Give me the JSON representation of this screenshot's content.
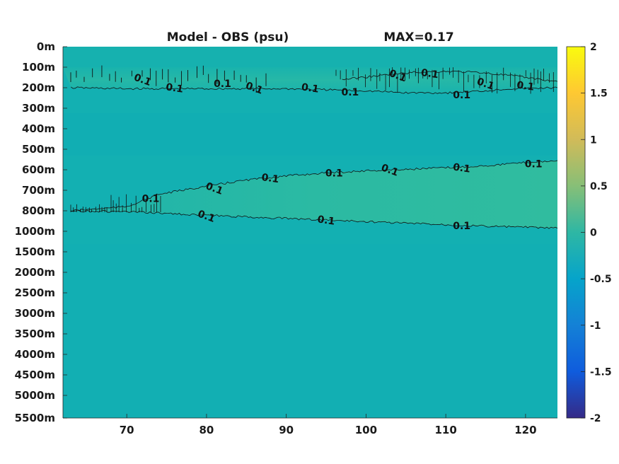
{
  "chart_data": {
    "type": "heatmap",
    "title": "Model - OBS (psu)",
    "annotation": "MAX=0.17",
    "xlabel": "",
    "ylabel": "",
    "x_ticks": [
      "70",
      "80",
      "90",
      "100",
      "110",
      "120"
    ],
    "x_tick_values": [
      70,
      80,
      90,
      100,
      110,
      120
    ],
    "xlim": [
      62,
      124
    ],
    "y_ticks": [
      "0m",
      "100m",
      "200m",
      "300m",
      "400m",
      "500m",
      "600m",
      "700m",
      "800m",
      "1000m",
      "1500m",
      "2000m",
      "2500m",
      "3000m",
      "3500m",
      "4000m",
      "4500m",
      "5000m",
      "5500m"
    ],
    "y_reversed": true,
    "colorbar": {
      "ticks": [
        "2",
        "1.5",
        "1",
        "0.5",
        "0",
        "-0.5",
        "-1",
        "-1.5",
        "-2"
      ],
      "range": [
        -2,
        2
      ],
      "colormap": "parula",
      "colors": [
        "#352a87",
        "#0f5cdd",
        "#1481d6",
        "#06a4ca",
        "#2eb7a4",
        "#87bf77",
        "#d1bb59",
        "#fec832",
        "#f9fb0e"
      ]
    },
    "background_value": 0.0,
    "contour_level": 0.1,
    "contour_label": "0.1",
    "bands": [
      {
        "name": "upper",
        "depth_range_m": [
          100,
          230
        ],
        "value": 0.12
      },
      {
        "name": "mid",
        "depth_range_m": [
          500,
          1000
        ],
        "value": 0.13
      }
    ],
    "contours": [
      {
        "name": "upper-bottom",
        "points": [
          [
            63,
            200
          ],
          [
            70,
            205
          ],
          [
            80,
            205
          ],
          [
            90,
            205
          ],
          [
            95,
            210
          ],
          [
            100,
            215
          ],
          [
            105,
            225
          ],
          [
            110,
            225
          ],
          [
            115,
            215
          ],
          [
            118,
            205
          ],
          [
            124,
            200
          ]
        ]
      },
      {
        "name": "upper-top",
        "points": [
          [
            97,
            160
          ],
          [
            102,
            140
          ],
          [
            106,
            125
          ],
          [
            110,
            120
          ],
          [
            114,
            125
          ],
          [
            118,
            140
          ],
          [
            122,
            160
          ],
          [
            124,
            170
          ]
        ]
      },
      {
        "name": "mid-top",
        "points": [
          [
            63,
            800
          ],
          [
            70,
            780
          ],
          [
            74,
            720
          ],
          [
            80,
            680
          ],
          [
            85,
            650
          ],
          [
            90,
            630
          ],
          [
            95,
            615
          ],
          [
            100,
            605
          ],
          [
            105,
            598
          ],
          [
            110,
            590
          ],
          [
            115,
            580
          ],
          [
            120,
            565
          ],
          [
            124,
            555
          ]
        ]
      },
      {
        "name": "mid-bottom",
        "points": [
          [
            63,
            800
          ],
          [
            70,
            810
          ],
          [
            75,
            825
          ],
          [
            80,
            845
          ],
          [
            85,
            860
          ],
          [
            90,
            875
          ],
          [
            95,
            890
          ],
          [
            100,
            905
          ],
          [
            105,
            920
          ],
          [
            110,
            935
          ],
          [
            115,
            950
          ],
          [
            120,
            960
          ],
          [
            124,
            970
          ]
        ]
      }
    ],
    "contour_labels": [
      {
        "x": 72,
        "y": 160,
        "text": "0.1"
      },
      {
        "x": 76,
        "y": 200,
        "text": "0.1"
      },
      {
        "x": 82,
        "y": 180,
        "text": "0.1"
      },
      {
        "x": 86,
        "y": 200,
        "text": "0.1"
      },
      {
        "x": 93,
        "y": 200,
        "text": "0.1"
      },
      {
        "x": 98,
        "y": 220,
        "text": "0.1"
      },
      {
        "x": 104,
        "y": 140,
        "text": "0.1"
      },
      {
        "x": 108,
        "y": 130,
        "text": "0.1"
      },
      {
        "x": 112,
        "y": 235,
        "text": "0.1"
      },
      {
        "x": 115,
        "y": 180,
        "text": "0.1"
      },
      {
        "x": 120,
        "y": 190,
        "text": "0.1"
      },
      {
        "x": 73,
        "y": 740,
        "text": "0.1"
      },
      {
        "x": 81,
        "y": 690,
        "text": "0.1"
      },
      {
        "x": 88,
        "y": 640,
        "text": "0.1"
      },
      {
        "x": 96,
        "y": 615,
        "text": "0.1"
      },
      {
        "x": 103,
        "y": 600,
        "text": "0.1"
      },
      {
        "x": 112,
        "y": 590,
        "text": "0.1"
      },
      {
        "x": 121,
        "y": 570,
        "text": "0.1"
      },
      {
        "x": 80,
        "y": 850,
        "text": "0.1"
      },
      {
        "x": 95,
        "y": 890,
        "text": "0.1"
      },
      {
        "x": 112,
        "y": 945,
        "text": "0.1"
      }
    ]
  }
}
